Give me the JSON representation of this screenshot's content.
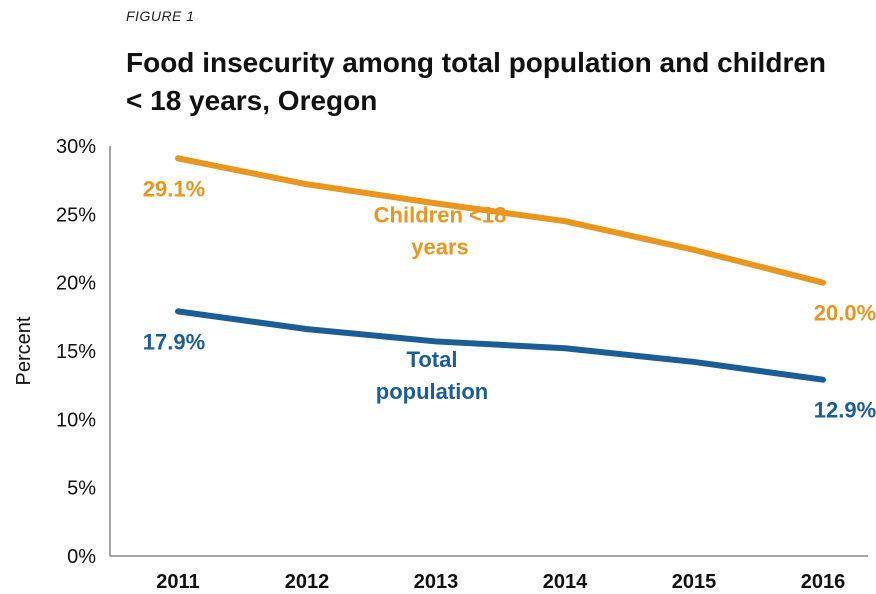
{
  "figure_label": "FIGURE 1",
  "chart_data": {
    "type": "line",
    "title": "Food insecurity among total population and children < 18 years, Oregon",
    "xlabel": "",
    "ylabel": "Percent",
    "x": [
      "2011",
      "2012",
      "2013",
      "2014",
      "2015",
      "2016"
    ],
    "ylim": [
      0,
      30
    ],
    "yticks": [
      "0%",
      "5%",
      "10%",
      "15%",
      "20%",
      "25%",
      "30%"
    ],
    "grid": false,
    "legend": "none (inline series labels)",
    "series": [
      {
        "name": "Children <18 years",
        "name_lines": [
          "Children <18",
          "years"
        ],
        "color": "#E8961E",
        "values": [
          29.1,
          27.2,
          25.8,
          24.5,
          22.4,
          20.0
        ],
        "data_labels": [
          {
            "index": 0,
            "text": "29.1%"
          },
          {
            "index": 5,
            "text": "20.0%"
          }
        ]
      },
      {
        "name": "Total population",
        "name_lines": [
          "Total",
          "population"
        ],
        "color": "#1B5E96",
        "values": [
          17.9,
          16.6,
          15.7,
          15.2,
          14.2,
          12.9
        ],
        "data_labels": [
          {
            "index": 0,
            "text": "17.9%"
          },
          {
            "index": 5,
            "text": "12.9%"
          }
        ]
      }
    ]
  }
}
